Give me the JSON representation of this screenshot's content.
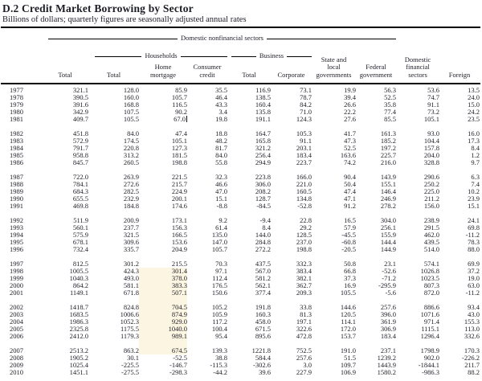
{
  "page": {
    "title": "D.2 Credit Market Borrowing by Sector",
    "subtitle": "Billions of dollars; quarterly figures are seasonally adjusted annual rates"
  },
  "header": {
    "group_domestic_nonfinancial": "Domestic nonfinancial sectors",
    "group_households": "Households",
    "group_business": "Business",
    "columns": [
      "Total",
      "Total",
      "Home\nmortgage",
      "Consumer\ncredit",
      "Total",
      "Corporate",
      "State and\nlocal\ngovernments",
      "Federal\ngovernment",
      "Domestic\nfinancial\nsectors",
      "Foreign"
    ]
  },
  "highlight": {
    "column": "Home mortgage",
    "column_index": 2,
    "start_year": 1998,
    "end_year": 2007,
    "color": "#fcf5e1"
  },
  "text_cursor": {
    "year": 1981,
    "column": "Home mortgage",
    "column_index": 2,
    "after_value": "67.0"
  },
  "chart_data": {
    "type": "table",
    "title": "D.2 Credit Market Borrowing by Sector",
    "columns": [
      "Total",
      "Households Total",
      "Home mortgage",
      "Consumer credit",
      "Business Total",
      "Corporate",
      "State and local governments",
      "Federal government",
      "Domestic financial sectors",
      "Foreign"
    ]
  },
  "table": {
    "groups": [
      {
        "rows": [
          {
            "year": "1977",
            "values": [
              "321.1",
              "128.0",
              "85.9",
              "35.5",
              "116.9",
              "73.1",
              "19.9",
              "56.3",
              "53.6",
              "13.5"
            ]
          },
          {
            "year": "1978",
            "values": [
              "390.5",
              "160.0",
              "105.7",
              "46.4",
              "138.5",
              "78.7",
              "39.4",
              "52.5",
              "74.7",
              "24.0"
            ]
          },
          {
            "year": "1979",
            "values": [
              "391.6",
              "168.8",
              "116.5",
              "43.3",
              "160.4",
              "84.2",
              "26.6",
              "35.8",
              "91.1",
              "15.0"
            ]
          },
          {
            "year": "1980",
            "values": [
              "342.9",
              "107.5",
              "90.2",
              "3.4",
              "135.8",
              "71.0",
              "22.2",
              "77.4",
              "73.2",
              "24.2"
            ]
          },
          {
            "year": "1981",
            "values": [
              "409.7",
              "105.5",
              "67.0",
              "19.8",
              "191.1",
              "124.3",
              "27.6",
              "85.5",
              "105.1",
              "23.5"
            ]
          }
        ]
      },
      {
        "rows": [
          {
            "year": "1982",
            "values": [
              "451.8",
              "84.0",
              "47.4",
              "18.8",
              "164.7",
              "105.3",
              "41.7",
              "161.3",
              "93.0",
              "16.0"
            ]
          },
          {
            "year": "1983",
            "values": [
              "572.9",
              "174.5",
              "105.1",
              "48.2",
              "165.8",
              "91.1",
              "47.3",
              "185.2",
              "104.4",
              "17.3"
            ]
          },
          {
            "year": "1984",
            "values": [
              "791.7",
              "220.8",
              "127.3",
              "81.7",
              "321.2",
              "203.1",
              "52.5",
              "197.2",
              "157.8",
              "8.4"
            ]
          },
          {
            "year": "1985",
            "values": [
              "958.8",
              "313.2",
              "181.5",
              "84.0",
              "256.4",
              "183.4",
              "163.6",
              "225.7",
              "204.0",
              "1.2"
            ]
          },
          {
            "year": "1986",
            "values": [
              "845.7",
              "260.5",
              "198.8",
              "55.8",
              "294.9",
              "223.7",
              "74.2",
              "216.0",
              "328.8",
              "9.7"
            ]
          }
        ]
      },
      {
        "rows": [
          {
            "year": "1987",
            "values": [
              "722.0",
              "263.9",
              "221.5",
              "32.3",
              "223.8",
              "166.0",
              "90.4",
              "143.9",
              "290.6",
              "6.3"
            ]
          },
          {
            "year": "1988",
            "values": [
              "784.1",
              "272.6",
              "215.7",
              "46.6",
              "306.0",
              "221.0",
              "50.4",
              "155.1",
              "250.2",
              "7.4"
            ]
          },
          {
            "year": "1989",
            "values": [
              "684.3",
              "282.5",
              "224.9",
              "47.0",
              "208.2",
              "160.5",
              "47.4",
              "146.4",
              "225.0",
              "10.2"
            ]
          },
          {
            "year": "1990",
            "values": [
              "655.5",
              "232.9",
              "200.1",
              "15.1",
              "128.7",
              "134.8",
              "47.1",
              "246.9",
              "211.2",
              "23.9"
            ]
          },
          {
            "year": "1991",
            "values": [
              "469.8",
              "184.8",
              "174.6",
              "-8.8",
              "-84.5",
              "-52.8",
              "91.2",
              "278.2",
              "156.0",
              "15.1"
            ]
          }
        ]
      },
      {
        "rows": [
          {
            "year": "1992",
            "values": [
              "511.9",
              "200.9",
              "173.1",
              "9.2",
              "-9.4",
              "22.8",
              "16.5",
              "304.0",
              "238.9",
              "24.1"
            ]
          },
          {
            "year": "1993",
            "values": [
              "560.1",
              "237.7",
              "156.3",
              "61.4",
              "8.4",
              "29.2",
              "57.9",
              "256.1",
              "291.5",
              "69.8"
            ]
          },
          {
            "year": "1994",
            "values": [
              "575.9",
              "321.5",
              "166.5",
              "135.0",
              "144.0",
              "128.5",
              "-45.5",
              "155.9",
              "462.0",
              "-11.2"
            ]
          },
          {
            "year": "1995",
            "values": [
              "678.1",
              "309.6",
              "153.6",
              "147.0",
              "284.8",
              "237.0",
              "-60.8",
              "144.4",
              "439.5",
              "78.3"
            ]
          },
          {
            "year": "1996",
            "values": [
              "732.4",
              "335.7",
              "204.9",
              "105.7",
              "272.2",
              "198.8",
              "-20.5",
              "144.9",
              "514.0",
              "88.0"
            ]
          }
        ]
      },
      {
        "rows": [
          {
            "year": "1997",
            "values": [
              "812.5",
              "301.2",
              "215.5",
              "70.3",
              "437.5",
              "332.3",
              "50.8",
              "23.1",
              "574.1",
              "69.9"
            ]
          },
          {
            "year": "1998",
            "values": [
              "1005.5",
              "424.3",
              "301.4",
              "97.1",
              "567.0",
              "383.4",
              "66.8",
              "-52.6",
              "1026.8",
              "37.2"
            ]
          },
          {
            "year": "1999",
            "values": [
              "1040.3",
              "493.0",
              "378.0",
              "112.4",
              "581.2",
              "382.1",
              "37.3",
              "-71.2",
              "1023.5",
              "19.0"
            ]
          },
          {
            "year": "2000",
            "values": [
              "864.2",
              "581.1",
              "383.3",
              "176.5",
              "562.1",
              "362.7",
              "16.9",
              "-295.9",
              "807.3",
              "63.0"
            ]
          },
          {
            "year": "2001",
            "values": [
              "1149.1",
              "671.8",
              "507.1",
              "150.6",
              "377.4",
              "209.3",
              "105.5",
              "-5.6",
              "872.0",
              "-11.2"
            ]
          }
        ]
      },
      {
        "rows": [
          {
            "year": "2002",
            "values": [
              "1418.7",
              "824.8",
              "704.5",
              "105.2",
              "191.8",
              "33.8",
              "144.6",
              "257.6",
              "886.6",
              "93.4"
            ]
          },
          {
            "year": "2003",
            "values": [
              "1683.5",
              "1006.6",
              "874.9",
              "105.9",
              "160.3",
              "81.3",
              "120.5",
              "396.0",
              "1071.6",
              "43.0"
            ]
          },
          {
            "year": "2004",
            "values": [
              "1986.3",
              "1052.3",
              "929.0",
              "117.2",
              "458.0",
              "197.1",
              "114.1",
              "361.9",
              "971.4",
              "155.3"
            ]
          },
          {
            "year": "2005",
            "values": [
              "2325.8",
              "1175.5",
              "1040.0",
              "100.4",
              "671.5",
              "322.6",
              "172.0",
              "306.9",
              "1115.1",
              "113.0"
            ]
          },
          {
            "year": "2006",
            "values": [
              "2412.0",
              "1179.3",
              "989.1",
              "95.4",
              "895.6",
              "472.8",
              "153.7",
              "183.4",
              "1296.4",
              "332.6"
            ]
          }
        ]
      },
      {
        "rows": [
          {
            "year": "2007",
            "values": [
              "2513.2",
              "863.2",
              "674.5",
              "139.3",
              "1221.8",
              "752.5",
              "191.0",
              "237.1",
              "1798.9",
              "170.3"
            ]
          },
          {
            "year": "2008",
            "values": [
              "1905.2",
              "30.1",
              "-52.5",
              "38.8",
              "584.4",
              "257.6",
              "51.5",
              "1239.2",
              "902.0",
              "-226.2"
            ]
          },
          {
            "year": "2009",
            "values": [
              "1025.4",
              "-225.5",
              "-146.7",
              "-115.3",
              "-302.6",
              "3.0",
              "109.7",
              "1443.9",
              "-1844.1",
              "211.7"
            ]
          },
          {
            "year": "2010",
            "values": [
              "1451.1",
              "-275.5",
              "-298.3",
              "-44.2",
              "39.6",
              "227.9",
              "106.9",
              "1580.2",
              "-986.3",
              "88.2"
            ]
          }
        ]
      }
    ]
  }
}
